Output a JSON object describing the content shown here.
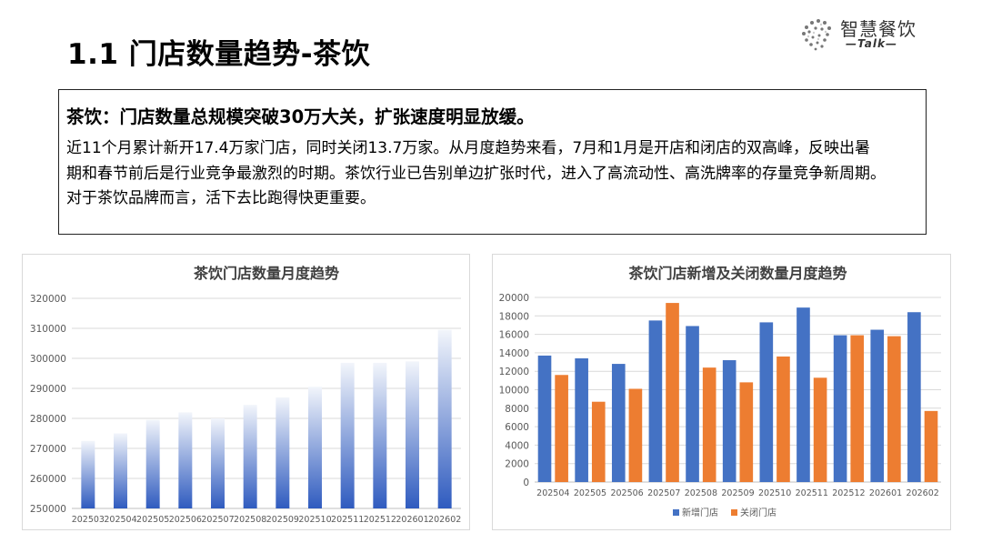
{
  "page": {
    "title": "1.1 门店数量趋势-茶饮"
  },
  "logo": {
    "name": "智慧餐饮",
    "sub": "—Talk—",
    "icon": "brain-dots-icon"
  },
  "summary": {
    "heading": "茶饮：门店数量总规模突破30万大关，扩张速度明显放缓。",
    "lines": [
      "近11个月累计新开17.4万家门店，同时关闭13.7万家。从月度趋势来看，7月和1月是开店和闭店的双高峰，反映出暑",
      "期和春节前后是行业竞争最激烈的时期。茶饮行业已告别单边扩张时代，进入了高流动性、高洗牌率的存量竞争新周期。",
      "对于茶饮品牌而言，活下去比跑得快更重要。"
    ]
  },
  "colors": {
    "bar_gradient_top": "#f2f5fb",
    "bar_gradient_bottom": "#2f5bbf",
    "new_stores": "#4472c4",
    "closed_stores": "#ed7d31",
    "gridline": "#d9d9d9",
    "axis_text": "#595959",
    "chart_title": "#404040"
  },
  "chart_data": [
    {
      "type": "bar",
      "title": "茶饮门店数量月度趋势",
      "categories": [
        "202503",
        "202504",
        "202505",
        "202506",
        "202507",
        "202508",
        "202509",
        "202510",
        "202511",
        "202512",
        "202601",
        "202602"
      ],
      "values": [
        272500,
        275000,
        279500,
        282000,
        280000,
        284500,
        287000,
        290500,
        298500,
        298500,
        299000,
        309500
      ],
      "ylim": [
        250000,
        320000
      ],
      "yticks": [
        250000,
        260000,
        270000,
        280000,
        290000,
        300000,
        310000,
        320000
      ],
      "xlabel": "",
      "ylabel": "",
      "grid": true,
      "legend": "none"
    },
    {
      "type": "bar",
      "title": "茶饮门店新增及关闭数量月度趋势",
      "categories": [
        "202504",
        "202505",
        "202506",
        "202507",
        "202508",
        "202509",
        "202510",
        "202511",
        "202512",
        "202601",
        "202602"
      ],
      "series": [
        {
          "name": "新增门店",
          "values": [
            13700,
            13400,
            12800,
            17500,
            16900,
            13200,
            17300,
            18900,
            15900,
            16500,
            18400
          ]
        },
        {
          "name": "关闭门店",
          "values": [
            11600,
            8700,
            10100,
            19400,
            12400,
            10800,
            13600,
            11300,
            15900,
            15800,
            7700
          ]
        }
      ],
      "ylim": [
        0,
        20000
      ],
      "yticks": [
        0,
        2000,
        4000,
        6000,
        8000,
        10000,
        12000,
        14000,
        16000,
        18000,
        20000
      ],
      "xlabel": "",
      "ylabel": "",
      "grid": true,
      "legend": "bottom"
    }
  ]
}
